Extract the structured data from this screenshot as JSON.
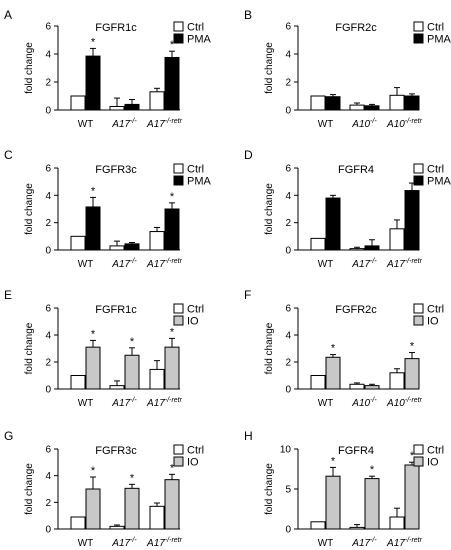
{
  "figure": {
    "panels": [
      "A",
      "B",
      "C",
      "D",
      "E",
      "F",
      "G",
      "H"
    ]
  },
  "colors": {
    "ctrl": "#ffffff",
    "pma": "#000000",
    "io": "#c8c8c8",
    "outline": "#000000"
  },
  "chart_data": [
    {
      "panel": "A",
      "type": "bar",
      "title": "FGFR1c",
      "ylabel": "fold change",
      "categories": [
        "WT",
        "A17",
        "A17"
      ],
      "category_sup": [
        "",
        "-/-",
        "-/-retr"
      ],
      "ylim": [
        0,
        6
      ],
      "yticks": [
        0,
        2,
        4,
        6
      ],
      "legend": {
        "position": "top-right",
        "entries": [
          "Ctrl",
          "PMA"
        ]
      },
      "series": [
        {
          "name": "Ctrl",
          "fill": "ctrl",
          "values": [
            1.0,
            0.25,
            1.3
          ],
          "errors": [
            0.0,
            0.6,
            0.25
          ],
          "stars": [
            false,
            false,
            false
          ]
        },
        {
          "name": "PMA",
          "fill": "pma",
          "values": [
            3.85,
            0.4,
            3.75
          ],
          "errors": [
            0.55,
            0.35,
            0.45
          ],
          "stars": [
            true,
            false,
            true
          ]
        }
      ]
    },
    {
      "panel": "B",
      "type": "bar",
      "title": "FGFR2c",
      "ylabel": "fold change",
      "categories": [
        "WT",
        "A10",
        "A10"
      ],
      "category_sup": [
        "",
        "-/-",
        "-/-retr"
      ],
      "ylim": [
        0,
        6
      ],
      "yticks": [
        0,
        2,
        4,
        6
      ],
      "legend": {
        "position": "top-right",
        "entries": [
          "Ctrl",
          "PMA"
        ]
      },
      "series": [
        {
          "name": "Ctrl",
          "fill": "ctrl",
          "values": [
            1.0,
            0.35,
            1.05
          ],
          "errors": [
            0.0,
            0.15,
            0.55
          ],
          "stars": [
            false,
            false,
            false
          ]
        },
        {
          "name": "PMA",
          "fill": "pma",
          "values": [
            0.95,
            0.3,
            1.0
          ],
          "errors": [
            0.15,
            0.1,
            0.15
          ],
          "stars": [
            false,
            false,
            false
          ]
        }
      ]
    },
    {
      "panel": "C",
      "type": "bar",
      "title": "FGFR3c",
      "ylabel": "fold change",
      "categories": [
        "WT",
        "A17",
        "A17"
      ],
      "category_sup": [
        "",
        "-/-",
        "-/-retr"
      ],
      "ylim": [
        0,
        6
      ],
      "yticks": [
        0,
        2,
        4,
        6
      ],
      "legend": {
        "position": "top-right",
        "entries": [
          "Ctrl",
          "PMA"
        ]
      },
      "series": [
        {
          "name": "Ctrl",
          "fill": "ctrl",
          "values": [
            1.0,
            0.3,
            1.35
          ],
          "errors": [
            0.0,
            0.35,
            0.3
          ],
          "stars": [
            false,
            false,
            false
          ]
        },
        {
          "name": "PMA",
          "fill": "pma",
          "values": [
            3.15,
            0.45,
            3.0
          ],
          "errors": [
            0.7,
            0.1,
            0.45
          ],
          "stars": [
            true,
            false,
            true
          ]
        }
      ]
    },
    {
      "panel": "D",
      "type": "bar",
      "title": "FGFR4",
      "ylabel": "fold change",
      "categories": [
        "WT",
        "A17",
        "A17"
      ],
      "category_sup": [
        "",
        "-/-",
        "-/-retr"
      ],
      "ylim": [
        0,
        6
      ],
      "yticks": [
        0,
        2,
        4,
        6
      ],
      "legend": {
        "position": "top-right",
        "entries": [
          "Ctrl",
          "PMA"
        ]
      },
      "series": [
        {
          "name": "Ctrl",
          "fill": "ctrl",
          "values": [
            0.85,
            0.1,
            1.55
          ],
          "errors": [
            0.0,
            0.1,
            0.65
          ],
          "stars": [
            false,
            false,
            false
          ]
        },
        {
          "name": "PMA",
          "fill": "pma",
          "values": [
            3.8,
            0.3,
            4.35
          ],
          "errors": [
            0.2,
            0.45,
            0.55
          ],
          "stars": [
            false,
            false,
            false
          ]
        }
      ]
    },
    {
      "panel": "E",
      "type": "bar",
      "title": "FGFR1c",
      "ylabel": "fold change",
      "categories": [
        "WT",
        "A17",
        "A17"
      ],
      "category_sup": [
        "",
        "-/-",
        "-/-retr"
      ],
      "ylim": [
        0,
        6
      ],
      "yticks": [
        0,
        2,
        4,
        6
      ],
      "legend": {
        "position": "top-right",
        "entries": [
          "Ctrl",
          "IO"
        ]
      },
      "series": [
        {
          "name": "Ctrl",
          "fill": "ctrl",
          "values": [
            1.0,
            0.25,
            1.45
          ],
          "errors": [
            0.0,
            0.35,
            0.65
          ],
          "stars": [
            false,
            false,
            false
          ]
        },
        {
          "name": "IO",
          "fill": "io",
          "values": [
            3.1,
            2.5,
            3.1
          ],
          "errors": [
            0.5,
            0.55,
            0.65
          ],
          "stars": [
            true,
            true,
            true
          ]
        }
      ]
    },
    {
      "panel": "F",
      "type": "bar",
      "title": "FGFR2c",
      "ylabel": "fold change",
      "categories": [
        "WT",
        "A10",
        "A10"
      ],
      "category_sup": [
        "",
        "-/-",
        "-/-retr"
      ],
      "ylim": [
        0,
        6
      ],
      "yticks": [
        0,
        2,
        4,
        6
      ],
      "legend": {
        "position": "top-right",
        "entries": [
          "Ctrl",
          "IO"
        ]
      },
      "series": [
        {
          "name": "Ctrl",
          "fill": "ctrl",
          "values": [
            1.0,
            0.35,
            1.2
          ],
          "errors": [
            0.0,
            0.1,
            0.3
          ],
          "stars": [
            false,
            false,
            false
          ]
        },
        {
          "name": "IO",
          "fill": "io",
          "values": [
            2.35,
            0.25,
            2.25
          ],
          "errors": [
            0.2,
            0.1,
            0.45
          ],
          "stars": [
            true,
            false,
            true
          ]
        }
      ]
    },
    {
      "panel": "G",
      "type": "bar",
      "title": "FGFR3c",
      "ylabel": "fold change",
      "categories": [
        "WT",
        "A17",
        "A17"
      ],
      "category_sup": [
        "",
        "-/-",
        "-/-retr"
      ],
      "ylim": [
        0,
        6
      ],
      "yticks": [
        0,
        2,
        4,
        6
      ],
      "legend": {
        "position": "top-right",
        "entries": [
          "Ctrl",
          "IO"
        ]
      },
      "series": [
        {
          "name": "Ctrl",
          "fill": "ctrl",
          "values": [
            0.9,
            0.2,
            1.7
          ],
          "errors": [
            0.0,
            0.1,
            0.25
          ],
          "stars": [
            false,
            false,
            false
          ]
        },
        {
          "name": "IO",
          "fill": "io",
          "values": [
            3.0,
            3.05,
            3.7
          ],
          "errors": [
            0.9,
            0.3,
            0.4
          ],
          "stars": [
            true,
            true,
            true
          ]
        }
      ]
    },
    {
      "panel": "H",
      "type": "bar",
      "title": "FGFR4",
      "ylabel": "fold change",
      "categories": [
        "WT",
        "A17",
        "A17"
      ],
      "category_sup": [
        "",
        "-/-",
        "-/-retr"
      ],
      "ylim": [
        0,
        10
      ],
      "yticks": [
        0,
        5,
        10
      ],
      "legend": {
        "position": "top-right",
        "entries": [
          "Ctrl",
          "IO"
        ]
      },
      "series": [
        {
          "name": "Ctrl",
          "fill": "ctrl",
          "values": [
            0.9,
            0.2,
            1.5
          ],
          "errors": [
            0.0,
            0.35,
            1.1
          ],
          "stars": [
            false,
            false,
            false
          ]
        },
        {
          "name": "IO",
          "fill": "io",
          "values": [
            6.6,
            6.3,
            8.0
          ],
          "errors": [
            1.1,
            0.3,
            0.35
          ],
          "stars": [
            true,
            true,
            true
          ]
        }
      ]
    }
  ]
}
